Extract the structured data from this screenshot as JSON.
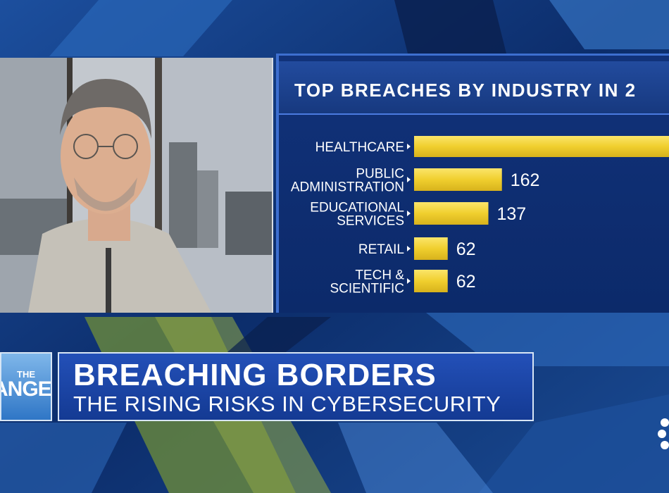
{
  "chart_data": {
    "type": "bar",
    "orientation": "horizontal",
    "title": "TOP BREACHES BY INDUSTRY IN 2",
    "categories": [
      [
        "HEALTHCARE"
      ],
      [
        "PUBLIC",
        "ADMINISTRATION"
      ],
      [
        "EDUCATIONAL",
        "SERVICES"
      ],
      [
        "RETAIL"
      ],
      [
        "TECH &",
        "SCIENTIFIC"
      ]
    ],
    "values": [
      null,
      162,
      137,
      62,
      62
    ],
    "value_labels": [
      "",
      "162",
      "137",
      "62",
      "62"
    ],
    "approx_healthcare": 480,
    "bar_color": "#f0cf2e",
    "grid": false,
    "legend": "none"
  },
  "lower_third": {
    "show_logo_small": "THE",
    "show_logo_big": "ANGE",
    "headline": "BREACHING BORDERS",
    "subheadline": "THE RISING RISKS IN CYBERSECURITY"
  },
  "colors": {
    "background": "#0b2c63",
    "panel": "#11327a",
    "accent": "#3d6fd0",
    "bar": "#f0cf2e"
  }
}
